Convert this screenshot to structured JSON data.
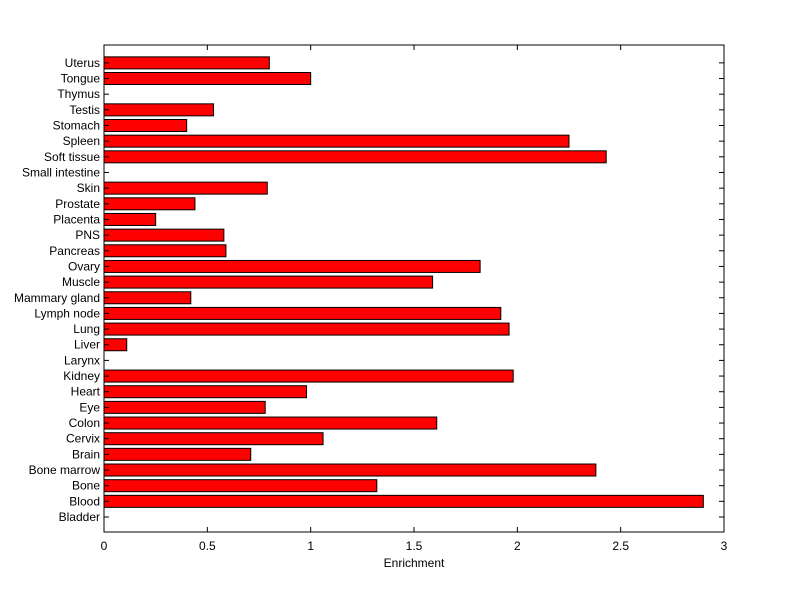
{
  "chart_data": {
    "type": "bar",
    "orientation": "horizontal",
    "title": "",
    "xlabel": "Enrichment",
    "ylabel": "",
    "xlim": [
      0,
      3
    ],
    "xticks": [
      "0",
      "0.5",
      "1",
      "1.5",
      "2",
      "2.5",
      "3"
    ],
    "grid": false,
    "legend": "none",
    "bar_color": "#ff0000",
    "categories": [
      "Bladder",
      "Blood",
      "Bone",
      "Bone marrow",
      "Brain",
      "Cervix",
      "Colon",
      "Eye",
      "Heart",
      "Kidney",
      "Larynx",
      "Liver",
      "Lung",
      "Lymph node",
      "Mammary gland",
      "Muscle",
      "Ovary",
      "Pancreas",
      "PNS",
      "Placenta",
      "Prostate",
      "Skin",
      "Small intestine",
      "Soft tissue",
      "Spleen",
      "Stomach",
      "Testis",
      "Thymus",
      "Tongue",
      "Uterus"
    ],
    "values": [
      0,
      2.9,
      1.32,
      2.38,
      0.71,
      1.06,
      1.61,
      0.78,
      0.98,
      1.98,
      0,
      0.11,
      1.96,
      1.92,
      0.42,
      1.59,
      1.82,
      0.59,
      0.58,
      0.25,
      0.44,
      0.79,
      0,
      2.43,
      2.25,
      0.4,
      0.53,
      0,
      1.0,
      0.8
    ]
  }
}
